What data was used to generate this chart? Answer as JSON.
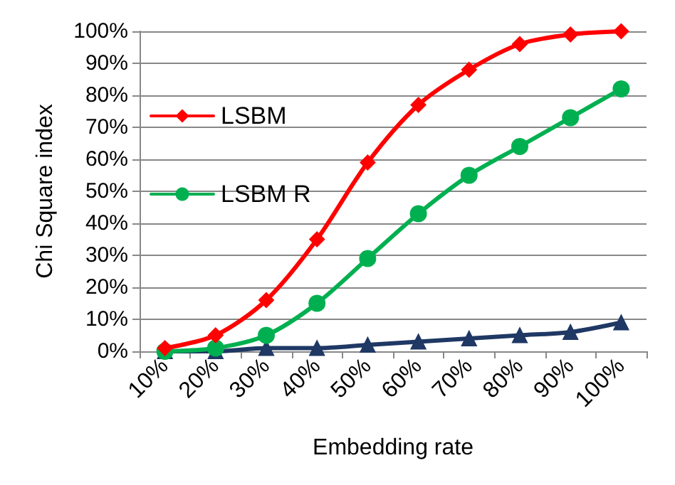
{
  "chart_data": {
    "type": "line",
    "xlabel": "Embedding rate",
    "ylabel": "Chi Square index",
    "categories": [
      "10%",
      "20%",
      "30%",
      "40%",
      "50%",
      "60%",
      "70%",
      "80%",
      "90%",
      "100%"
    ],
    "series": [
      {
        "name": "LSBM",
        "color": "#ff0000",
        "marker": "diamond",
        "values": [
          1,
          5,
          16,
          35,
          59,
          77,
          88,
          96,
          99,
          100
        ]
      },
      {
        "name": "LSBM R",
        "color": "#00b050",
        "marker": "circle",
        "values": [
          0,
          1,
          5,
          15,
          29,
          43,
          55,
          64,
          73,
          82
        ]
      },
      {
        "color": "#1f3864",
        "marker": "triangle",
        "values": [
          0,
          0,
          1,
          1,
          2,
          3,
          4,
          5,
          6,
          9
        ]
      }
    ],
    "ylim": [
      0,
      100
    ],
    "yticks": [
      {
        "value": 0,
        "label": "0%"
      },
      {
        "value": 10,
        "label": "10%"
      },
      {
        "value": 20,
        "label": "20%"
      },
      {
        "value": 30,
        "label": "30%"
      },
      {
        "value": 40,
        "label": "40%"
      },
      {
        "value": 50,
        "label": "50%"
      },
      {
        "value": 60,
        "label": "60%"
      },
      {
        "value": 70,
        "label": "70%"
      },
      {
        "value": 80,
        "label": "80%"
      },
      {
        "value": 90,
        "label": "90%"
      },
      {
        "value": 100,
        "label": "100%"
      }
    ],
    "grid": "y",
    "legend": "top left"
  }
}
